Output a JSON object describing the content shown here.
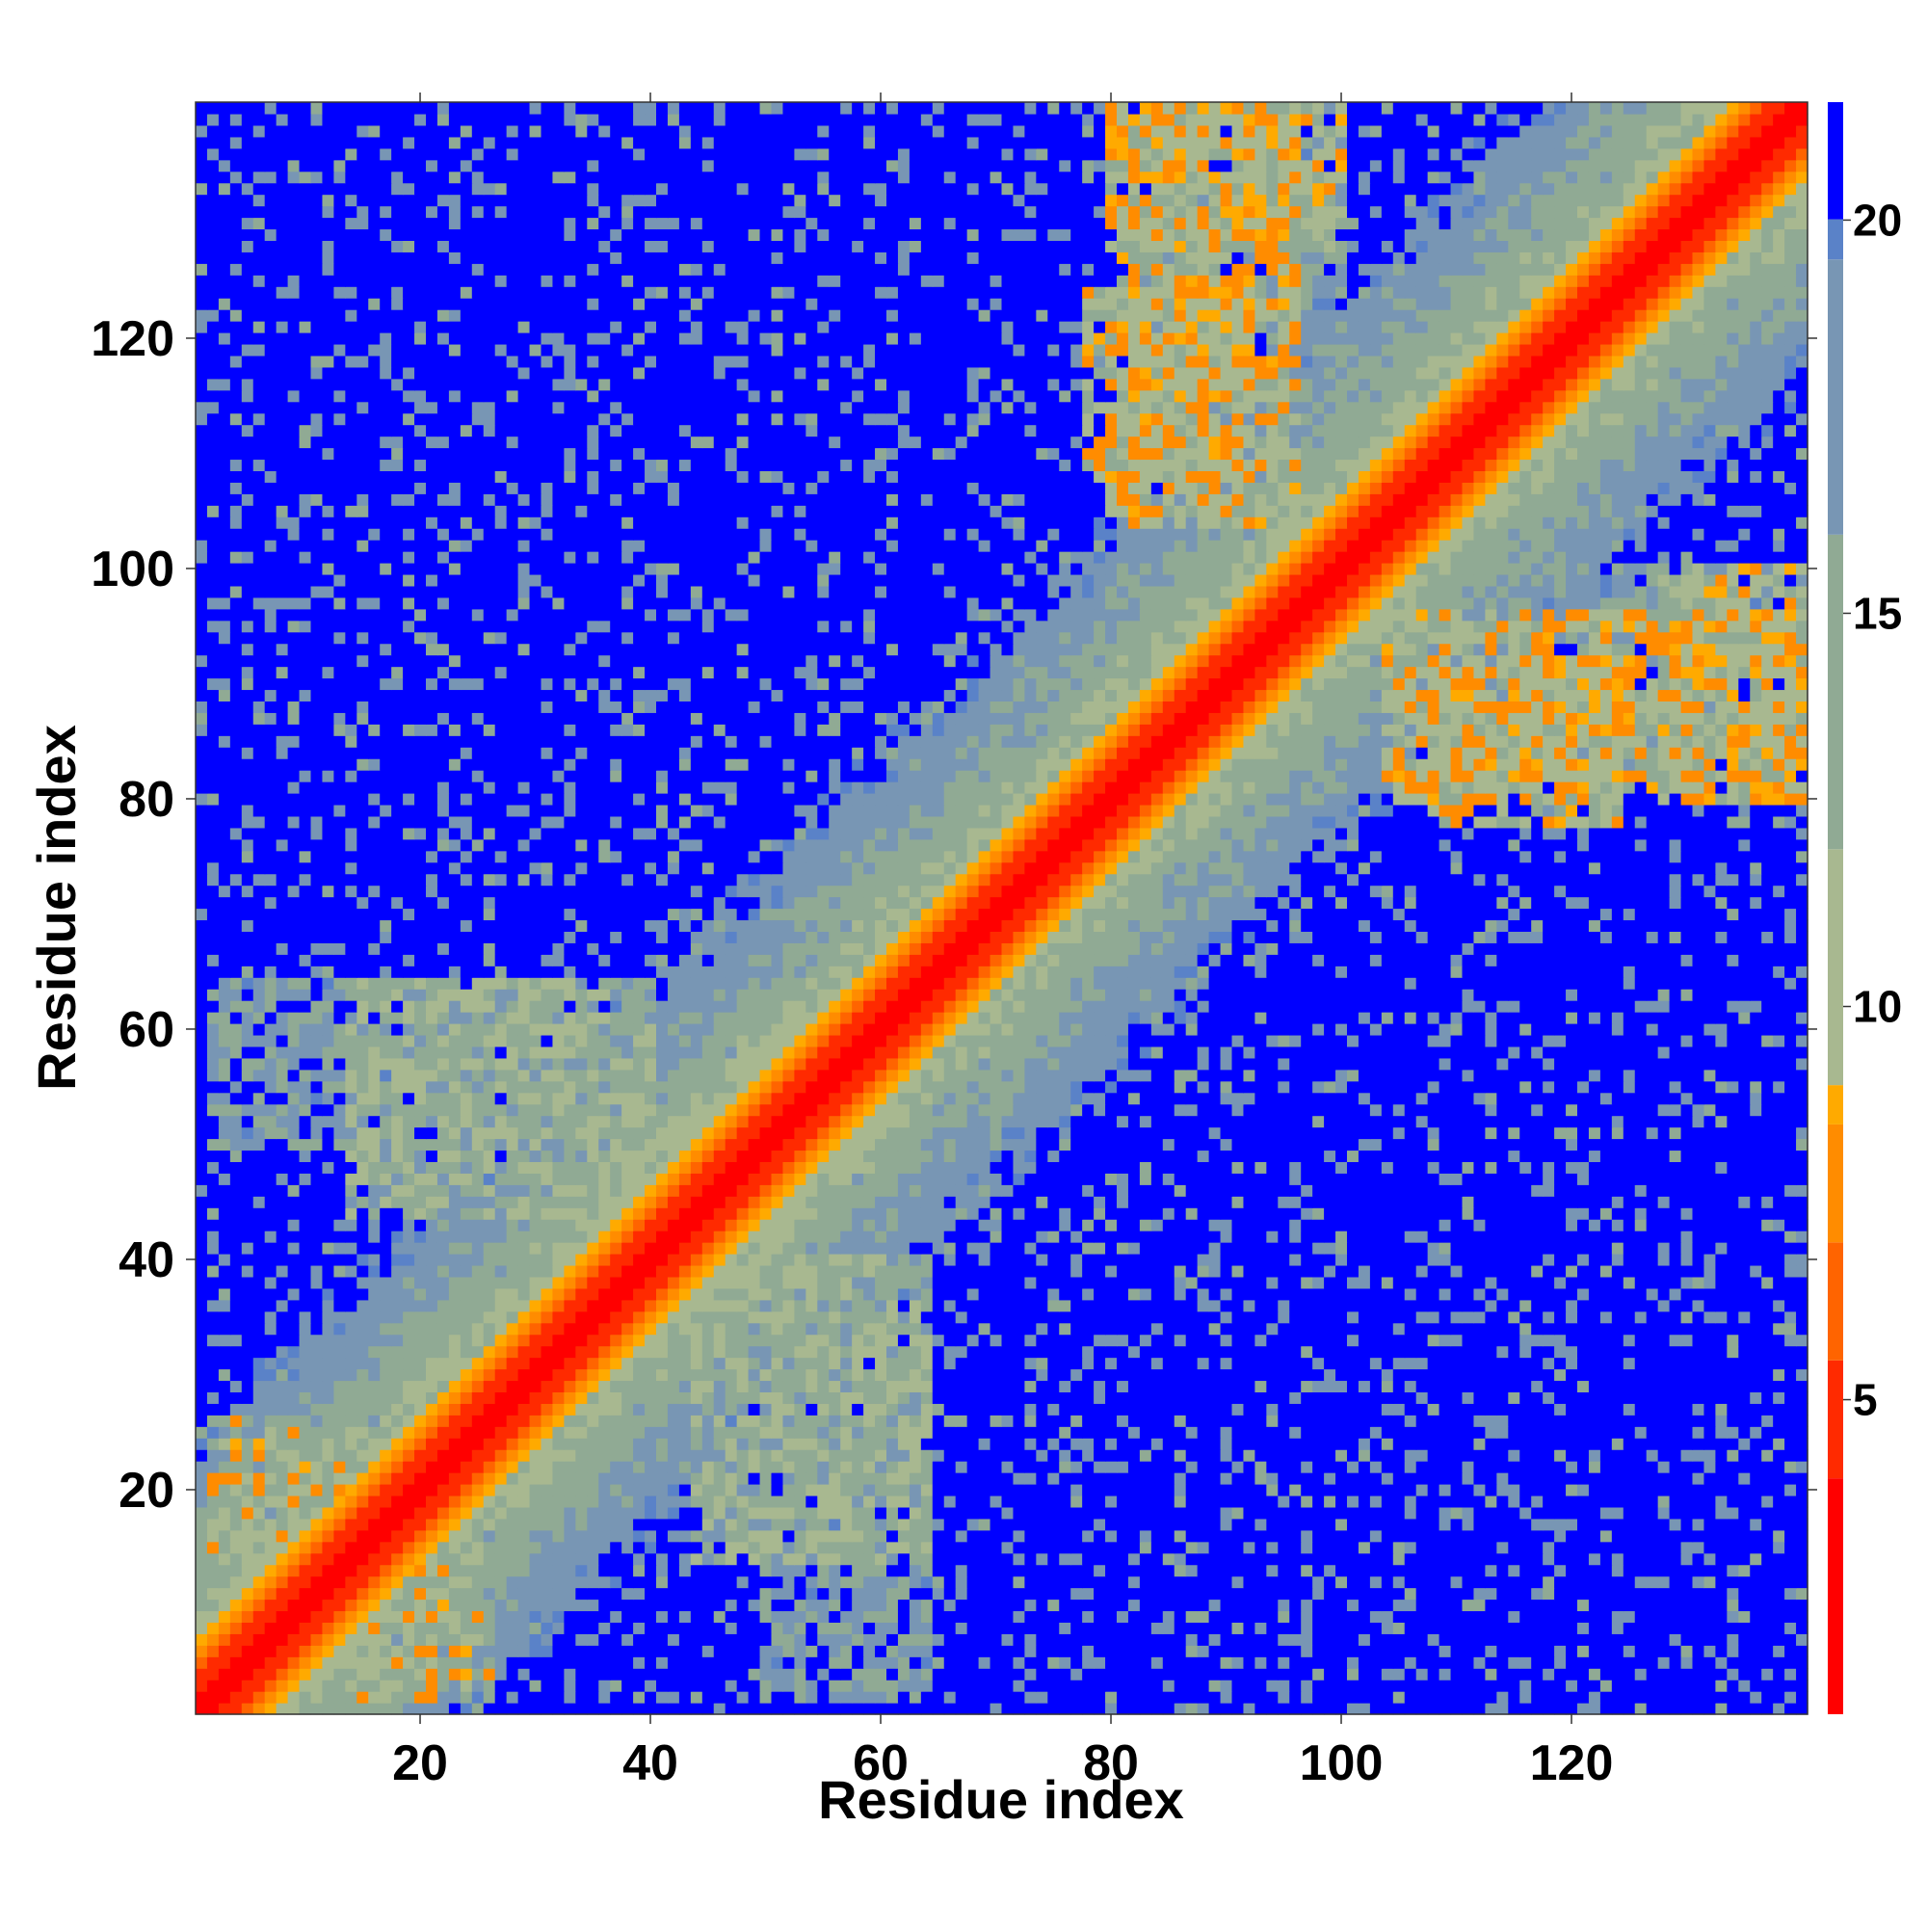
{
  "chart_data": {
    "type": "heatmap",
    "title": "",
    "xlabel": "Residue index",
    "ylabel": "Residue index",
    "n_residues": 140,
    "xlim": [
      1,
      140
    ],
    "ylim": [
      1,
      140
    ],
    "x_ticks": [
      20,
      40,
      60,
      80,
      100,
      120
    ],
    "y_ticks": [
      20,
      40,
      60,
      80,
      100,
      120
    ],
    "x_tick_labels": [
      "20",
      "40",
      "60",
      "80",
      "100",
      "120"
    ],
    "y_tick_labels": [
      "20",
      "40",
      "60",
      "80",
      "100",
      "120"
    ],
    "grid": false,
    "value_description": "pairwise residue distance",
    "colorbar": {
      "min": 1,
      "max": 21.5,
      "ticks": [
        5,
        10,
        15,
        20
      ],
      "tick_labels": [
        "5",
        "10",
        "15",
        "20"
      ],
      "color_stops": [
        {
          "value": 1,
          "color": "#ff0000"
        },
        {
          "value": 4,
          "color": "#ff2a00"
        },
        {
          "value": 5.5,
          "color": "#ff6400"
        },
        {
          "value": 7,
          "color": "#ff8c00"
        },
        {
          "value": 8.5,
          "color": "#ffaa00"
        },
        {
          "value": 9,
          "color": "#a8b890"
        },
        {
          "value": 12,
          "color": "#90aa94"
        },
        {
          "value": 16,
          "color": "#7896b4"
        },
        {
          "value": 19.5,
          "color": "#5a82c8"
        },
        {
          "value": 20.01,
          "color": "#0000ff"
        }
      ]
    },
    "contact_clusters": [
      {
        "x": [
          2,
          14
        ],
        "y": [
          14,
          26
        ],
        "value": 7.5
      },
      {
        "x": [
          14,
          24
        ],
        "y": [
          2,
          12
        ],
        "value": 7.5
      },
      {
        "x": [
          14,
          40
        ],
        "y": [
          44,
          64
        ],
        "value": 9.5
      },
      {
        "x": [
          44,
          64
        ],
        "y": [
          14,
          40
        ],
        "value": 9.5
      },
      {
        "x": [
          80,
          96
        ],
        "y": [
          104,
          140
        ],
        "value": 7.0
      },
      {
        "x": [
          104,
          140
        ],
        "y": [
          80,
          96
        ],
        "value": 7.0
      },
      {
        "x": [
          108,
          124
        ],
        "y": [
          78,
          92
        ],
        "value": 7.5
      },
      {
        "x": [
          78,
          92
        ],
        "y": [
          108,
          124
        ],
        "value": 7.5
      },
      {
        "x": [
          128,
          140
        ],
        "y": [
          80,
          100
        ],
        "value": 8.0
      },
      {
        "x": [
          80,
          100
        ],
        "y": [
          128,
          140
        ],
        "value": 8.0
      },
      {
        "x": [
          6,
          30
        ],
        "y": [
          8,
          24
        ],
        "value": 12.0
      },
      {
        "x": [
          50,
          64
        ],
        "y": [
          2,
          40
        ],
        "value": 13.0
      },
      {
        "x": [
          2,
          40
        ],
        "y": [
          50,
          64
        ],
        "value": 13.0
      },
      {
        "x": [
          110,
          140
        ],
        "y": [
          82,
          100
        ],
        "value": 13.5
      },
      {
        "x": [
          82,
          100
        ],
        "y": [
          110,
          140
        ],
        "value": 13.5
      }
    ]
  }
}
